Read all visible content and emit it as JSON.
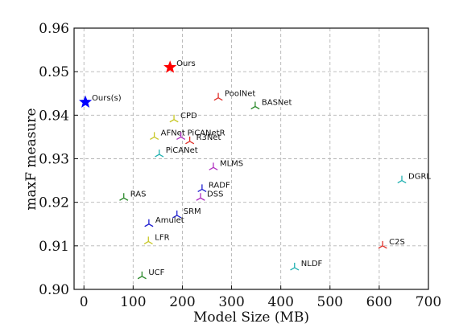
{
  "chart_data": {
    "type": "scatter",
    "xlabel": "Model Size (MB)",
    "ylabel": "maxF measure",
    "xlim": [
      -20,
      700
    ],
    "ylim": [
      0.9,
      0.96
    ],
    "xticks": [
      "0",
      "100",
      "200",
      "300",
      "400",
      "500",
      "600",
      "700"
    ],
    "yticks": [
      "0.90",
      "0.91",
      "0.92",
      "0.93",
      "0.94",
      "0.95",
      "0.96"
    ],
    "grid": true,
    "points": [
      {
        "label": "Ours",
        "x": 175,
        "y": 0.951,
        "marker": "star",
        "color": "#ff0000"
      },
      {
        "label": "Ours(s)",
        "x": 3,
        "y": 0.943,
        "marker": "star",
        "color": "#0000ff"
      },
      {
        "label": "PoolNet",
        "x": 273,
        "y": 0.944,
        "marker": "tri",
        "color": "#e0302a"
      },
      {
        "label": "BASNet",
        "x": 348,
        "y": 0.942,
        "marker": "tri",
        "color": "#2e8b2e"
      },
      {
        "label": "CPD",
        "x": 183,
        "y": 0.939,
        "marker": "tri",
        "color": "#c8c828"
      },
      {
        "label": "AFNet",
        "x": 143,
        "y": 0.935,
        "marker": "tri",
        "color": "#c8c828"
      },
      {
        "label": "PiCANetR",
        "x": 197,
        "y": 0.935,
        "marker": "tri",
        "color": "#b030c0"
      },
      {
        "label": "R3Net",
        "x": 215,
        "y": 0.934,
        "marker": "tri",
        "color": "#e0302a"
      },
      {
        "label": "PiCANet",
        "x": 153,
        "y": 0.931,
        "marker": "tri",
        "color": "#20b0b0"
      },
      {
        "label": "MLMS",
        "x": 263,
        "y": 0.928,
        "marker": "tri",
        "color": "#b030c0"
      },
      {
        "label": "DGRL",
        "x": 646,
        "y": 0.925,
        "marker": "tri",
        "color": "#20b0b0"
      },
      {
        "label": "RADF",
        "x": 240,
        "y": 0.923,
        "marker": "tri",
        "color": "#2020d0"
      },
      {
        "label": "DSS",
        "x": 237,
        "y": 0.921,
        "marker": "tri",
        "color": "#b030c0"
      },
      {
        "label": "RAS",
        "x": 81,
        "y": 0.921,
        "marker": "tri",
        "color": "#2e8b2e"
      },
      {
        "label": "SRM",
        "x": 189,
        "y": 0.917,
        "marker": "tri",
        "color": "#2020d0"
      },
      {
        "label": "Amulet",
        "x": 132,
        "y": 0.915,
        "marker": "tri",
        "color": "#2020d0"
      },
      {
        "label": "LFR",
        "x": 131,
        "y": 0.911,
        "marker": "tri",
        "color": "#c8c828"
      },
      {
        "label": "C2S",
        "x": 607,
        "y": 0.91,
        "marker": "tri",
        "color": "#e0302a"
      },
      {
        "label": "NLDF",
        "x": 428,
        "y": 0.905,
        "marker": "tri",
        "color": "#20b0b0"
      },
      {
        "label": "UCF",
        "x": 118,
        "y": 0.903,
        "marker": "tri",
        "color": "#2e8b2e"
      }
    ]
  }
}
